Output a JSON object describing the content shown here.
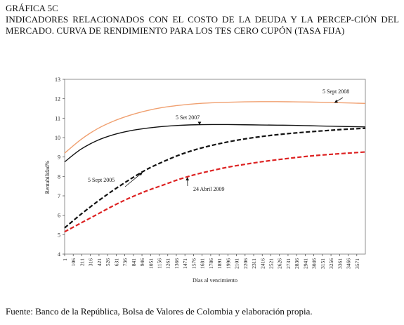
{
  "header": {
    "figure_number": "GRÁFICA 5C",
    "title": "INDICADORES RELACIONADOS CON EL COSTO DE LA DEUDA Y LA PERCEP-CIÓN DEL MERCADO. CURVA DE RENDIMIENTO PARA LOS TES CERO CUPÓN (TASA FIJA)"
  },
  "source": "Fuente: Banco de la República, Bolsa de Valores de Colombia y elaboración propia.",
  "chart_data": {
    "type": "line",
    "xlabel": "Días al vencimiento",
    "ylabel": "Rentabilidad%",
    "ylim": [
      4,
      13
    ],
    "yticks": [
      4,
      5,
      6,
      7,
      8,
      9,
      10,
      11,
      12,
      13
    ],
    "xlim": [
      1,
      3676
    ],
    "xticks": [
      1,
      106,
      211,
      316,
      421,
      526,
      631,
      736,
      841,
      946,
      1051,
      1156,
      1261,
      1366,
      1471,
      1576,
      1681,
      1786,
      1891,
      1996,
      2101,
      2206,
      2311,
      2416,
      2521,
      2626,
      2731,
      2836,
      2941,
      3046,
      3151,
      3256,
      3361,
      3466,
      3571
    ],
    "grid": false,
    "legend": "none",
    "series": [
      {
        "name": "5 Sept 2008",
        "color": "#f0a070",
        "dash": "solid",
        "x": [
          1,
          200,
          400,
          600,
          800,
          1000,
          1200,
          1400,
          1600,
          1800,
          2000,
          2200,
          2400,
          2600,
          2800,
          3000,
          3200,
          3400,
          3676
        ],
        "y": [
          9.2,
          9.9,
          10.45,
          10.85,
          11.15,
          11.38,
          11.55,
          11.66,
          11.74,
          11.79,
          11.82,
          11.84,
          11.85,
          11.85,
          11.84,
          11.83,
          11.81,
          11.79,
          11.76
        ]
      },
      {
        "name": "5 Set 2007",
        "color": "#111111",
        "dash": "solid",
        "x": [
          1,
          200,
          400,
          600,
          800,
          1000,
          1200,
          1400,
          1600,
          1800,
          2000,
          2200,
          2400,
          2600,
          2800,
          3000,
          3200,
          3400,
          3676
        ],
        "y": [
          8.75,
          9.4,
          9.85,
          10.15,
          10.35,
          10.48,
          10.57,
          10.63,
          10.66,
          10.67,
          10.67,
          10.66,
          10.65,
          10.64,
          10.63,
          10.61,
          10.59,
          10.57,
          10.55
        ]
      },
      {
        "name": "5 Sept 2005",
        "color": "#111111",
        "dash": "dashed",
        "x": [
          1,
          200,
          400,
          600,
          800,
          1000,
          1200,
          1400,
          1600,
          1800,
          2000,
          2200,
          2400,
          2600,
          2800,
          3000,
          3200,
          3400,
          3676
        ],
        "y": [
          5.35,
          6.05,
          6.7,
          7.3,
          7.85,
          8.35,
          8.75,
          9.1,
          9.38,
          9.6,
          9.78,
          9.93,
          10.05,
          10.15,
          10.23,
          10.3,
          10.36,
          10.42,
          10.48
        ]
      },
      {
        "name": "24 Abril 2009",
        "color": "#dd2222",
        "dash": "dashed",
        "x": [
          1,
          200,
          400,
          600,
          800,
          1000,
          1200,
          1400,
          1600,
          1800,
          2000,
          2200,
          2400,
          2600,
          2800,
          3000,
          3200,
          3400,
          3676
        ],
        "y": [
          5.15,
          5.6,
          6.05,
          6.5,
          6.9,
          7.25,
          7.55,
          7.85,
          8.1,
          8.3,
          8.48,
          8.62,
          8.75,
          8.86,
          8.96,
          9.05,
          9.12,
          9.18,
          9.26
        ]
      }
    ],
    "annotations": [
      {
        "text": "5 Sept 2008",
        "series": 0,
        "point_x": 3300,
        "point_y": 11.8
      },
      {
        "text": "5 Set 2007",
        "series": 1,
        "point_x": 1650,
        "point_y": 10.66
      },
      {
        "text": "5 Sept 2005",
        "series": 2,
        "point_x": 950,
        "point_y": 8.2
      },
      {
        "text": "24 Abril 2009",
        "series": 3,
        "point_x": 1500,
        "point_y": 7.95
      }
    ]
  }
}
